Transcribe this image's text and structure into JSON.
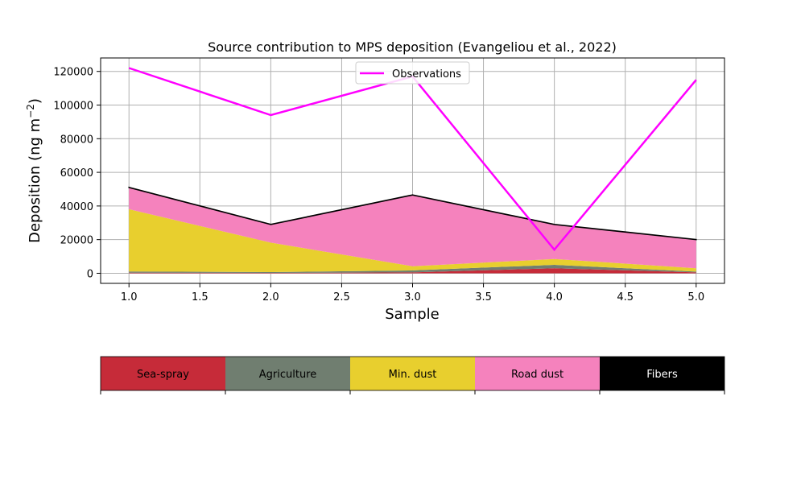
{
  "chart_data": {
    "type": "area",
    "title": "Source contribution to MPS deposition (Evangeliou et al., 2022)",
    "xlabel": "Sample",
    "ylabel": "Deposition (ng m",
    "ylabel_superscript": "−2",
    "ylabel_close": ")",
    "x": [
      1,
      2,
      3,
      4,
      5
    ],
    "xlim": [
      0.8,
      5.2
    ],
    "ylim": [
      -6000,
      128000
    ],
    "xticks": [
      1.0,
      1.5,
      2.0,
      2.5,
      3.0,
      3.5,
      4.0,
      4.5,
      5.0
    ],
    "xtick_labels": [
      "1.0",
      "1.5",
      "2.0",
      "2.5",
      "3.0",
      "3.5",
      "4.0",
      "4.5",
      "5.0"
    ],
    "yticks": [
      0,
      20000,
      40000,
      60000,
      80000,
      100000,
      120000
    ],
    "ytick_labels": [
      "0",
      "20000",
      "40000",
      "60000",
      "80000",
      "100000",
      "120000"
    ],
    "grid": true,
    "legend": "upper center",
    "stacked_series": [
      {
        "name": "Sea-spray",
        "color": "#c62b39",
        "values": [
          300,
          200,
          500,
          3000,
          500
        ]
      },
      {
        "name": "Agriculture",
        "color": "#707e70",
        "values": [
          800,
          500,
          1200,
          2000,
          500
        ]
      },
      {
        "name": "Min. dust",
        "color": "#e8cf2e",
        "values": [
          37000,
          17500,
          2500,
          3500,
          2000
        ]
      },
      {
        "name": "Road dust",
        "color": "#f582bd",
        "values": [
          12900,
          10800,
          42300,
          20500,
          17000
        ]
      },
      {
        "name": "Fibers",
        "color": "#000000",
        "values": [
          100,
          100,
          100,
          100,
          100
        ]
      }
    ],
    "line_series": [
      {
        "name": "Observations",
        "color": "#ff00ff",
        "values": [
          122000,
          94000,
          117000,
          14000,
          115000
        ]
      }
    ]
  },
  "swatch_legend": [
    {
      "label": "Sea-spray",
      "color": "#c62b39",
      "text_color": "#000000"
    },
    {
      "label": "Agriculture",
      "color": "#707e70",
      "text_color": "#000000"
    },
    {
      "label": "Min. dust",
      "color": "#e8cf2e",
      "text_color": "#000000"
    },
    {
      "label": "Road dust",
      "color": "#f582bd",
      "text_color": "#000000"
    },
    {
      "label": "Fibers",
      "color": "#000000",
      "text_color": "#ffffff"
    }
  ]
}
